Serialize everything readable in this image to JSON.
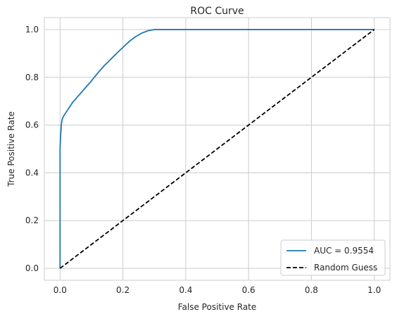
{
  "chart_data": {
    "type": "line",
    "title": "ROC Curve",
    "xlabel": "False Positive Rate",
    "ylabel": "True Positive Rate",
    "xlim": [
      -0.05,
      1.05
    ],
    "ylim": [
      -0.05,
      1.05
    ],
    "xticks": [
      "0.0",
      "0.2",
      "0.4",
      "0.6",
      "0.8",
      "1.0"
    ],
    "yticks": [
      "0.0",
      "0.2",
      "0.4",
      "0.6",
      "0.8",
      "1.0"
    ],
    "grid": true,
    "legend_position": "bottom-right",
    "series": [
      {
        "name": "AUC = 0.9554",
        "color": "#1f77b4",
        "style": "solid",
        "x": [
          0.0,
          0.0,
          0.002,
          0.004,
          0.006,
          0.01,
          0.015,
          0.02,
          0.03,
          0.04,
          0.05,
          0.06,
          0.07,
          0.08,
          0.1,
          0.12,
          0.14,
          0.16,
          0.18,
          0.2,
          0.22,
          0.24,
          0.26,
          0.28,
          0.3,
          0.35,
          0.4,
          0.5,
          0.6,
          0.7,
          0.8,
          0.9,
          1.0
        ],
        "y": [
          0.0,
          0.5,
          0.56,
          0.6,
          0.62,
          0.635,
          0.645,
          0.655,
          0.675,
          0.695,
          0.71,
          0.725,
          0.74,
          0.755,
          0.785,
          0.818,
          0.848,
          0.874,
          0.9,
          0.925,
          0.95,
          0.97,
          0.985,
          0.995,
          1.0,
          1.0,
          1.0,
          1.0,
          1.0,
          1.0,
          1.0,
          1.0,
          1.0
        ]
      },
      {
        "name": "Random Guess",
        "color": "#000000",
        "style": "dashed",
        "x": [
          0.0,
          1.0
        ],
        "y": [
          0.0,
          1.0
        ]
      }
    ]
  }
}
